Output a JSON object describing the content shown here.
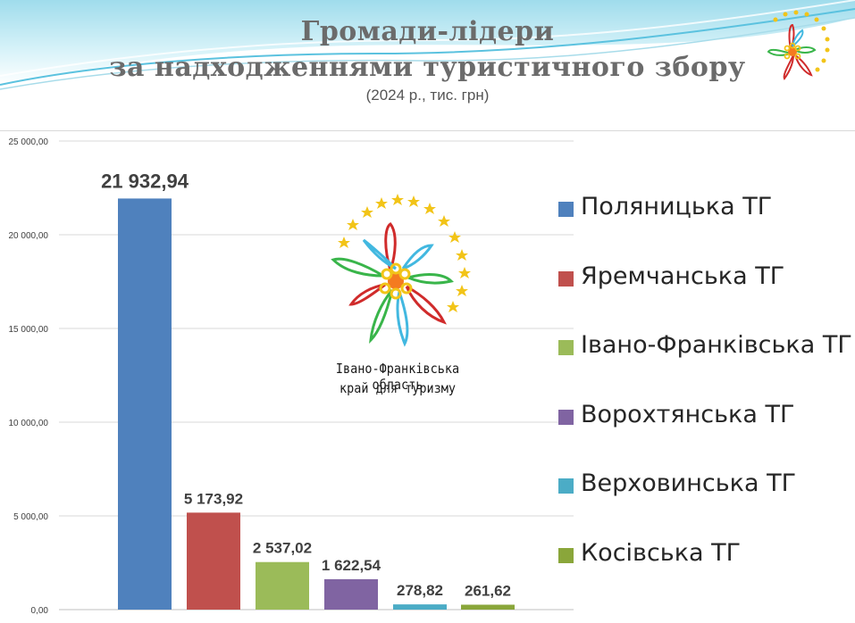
{
  "header": {
    "title_line1": "Громади-лідери",
    "title_line2": "за надходженнями туристичного збору",
    "subtitle": "(2024 р., тис. грн)"
  },
  "logo": {
    "caption_line1": "Івано-Франківська область",
    "caption_line2": "край для туризму"
  },
  "colors": {
    "header_bg": "#bfe9f3",
    "bars": [
      "#4f81bd",
      "#c0504d",
      "#9bbb59",
      "#8064a2",
      "#4bacc6",
      "#8aa63a"
    ]
  },
  "chart_data": {
    "type": "bar",
    "categories": [
      "Поляницька ТГ",
      "Яремчанська ТГ",
      "Івано-Франківська ТГ",
      "Ворохтянська ТГ",
      "Верховинська ТГ",
      "Косівська ТГ"
    ],
    "values": [
      21932.94,
      5173.92,
      2537.02,
      1622.54,
      278.82,
      261.62
    ],
    "data_labels": [
      "21 932,94",
      "5 173,92",
      "2 537,02",
      "1 622,54",
      "278,82",
      "261,62"
    ],
    "yticks": [
      "0,00",
      "5 000,00",
      "10 000,00",
      "15 000,00",
      "20 000,00",
      "25 000,00"
    ],
    "ylim": [
      0,
      25000
    ],
    "grid": true,
    "legend": "right"
  }
}
